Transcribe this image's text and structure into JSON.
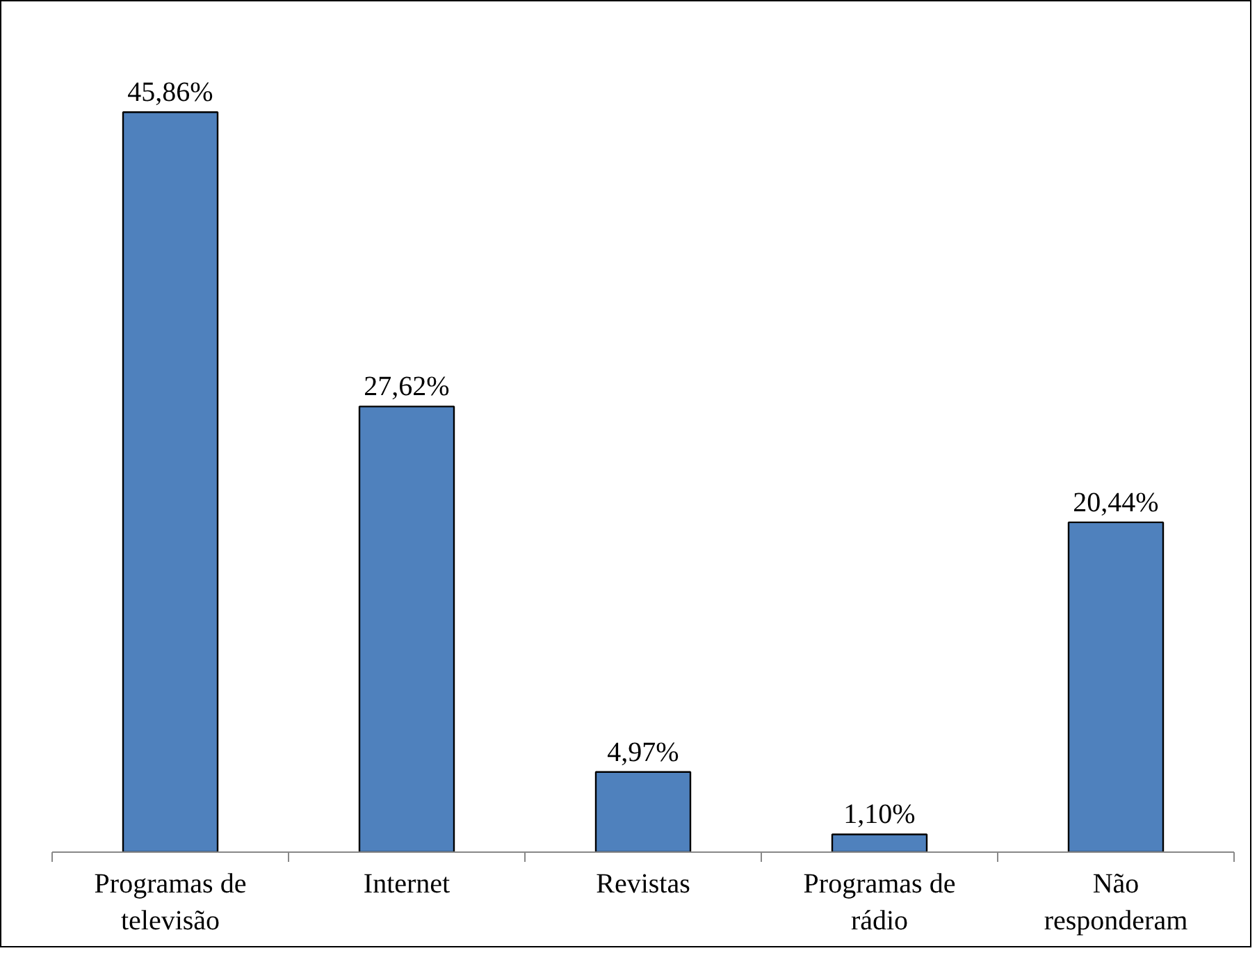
{
  "chart_data": {
    "type": "bar",
    "categories": [
      "Programas de televisão",
      "Internet",
      "Revistas",
      "Programas de rádio",
      "Não responderam"
    ],
    "values": [
      45.86,
      27.62,
      4.97,
      1.1,
      20.44
    ],
    "value_labels": [
      "45,86%",
      "27,62%",
      "4,97%",
      "1,10%",
      "20,44%"
    ],
    "color": "#4f81bd"
  }
}
